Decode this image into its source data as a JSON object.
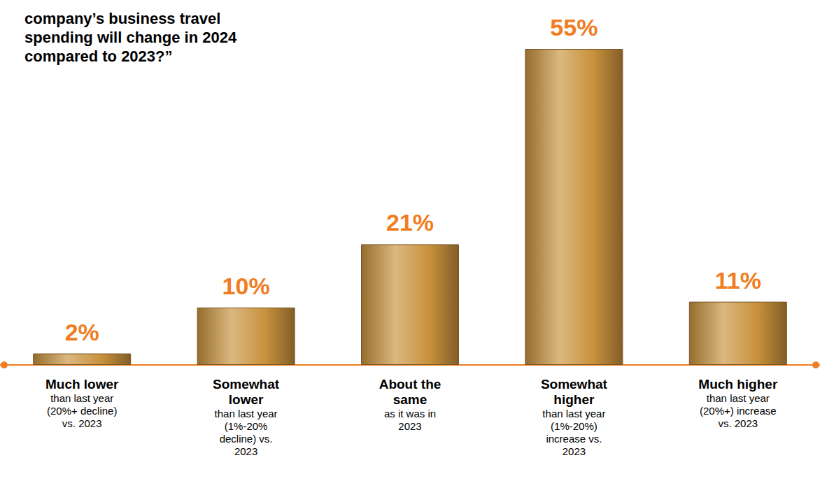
{
  "chart_data": {
    "type": "bar",
    "title": "company’s business travel spending will change in 2024 compared to 2023?”",
    "categories": [
      "Much lower",
      "Somewhat lower",
      "About the same",
      "Somewhat higher",
      "Much higher"
    ],
    "category_details": [
      "than last year (20%+ decline) vs. 2023",
      "than last year (1%-20% decline) vs. 2023",
      "as it was in 2023",
      "than last year (1%-20%) increase vs. 2023",
      "than last year (20%+) increase vs. 2023"
    ],
    "values": [
      2,
      10,
      21,
      55,
      11
    ],
    "value_labels": [
      "2%",
      "10%",
      "21%",
      "55%",
      "11%"
    ],
    "color": "#c8913c",
    "ylim": [
      0,
      55
    ],
    "grid": false,
    "data_labels": true,
    "tick_labels": "x"
  }
}
